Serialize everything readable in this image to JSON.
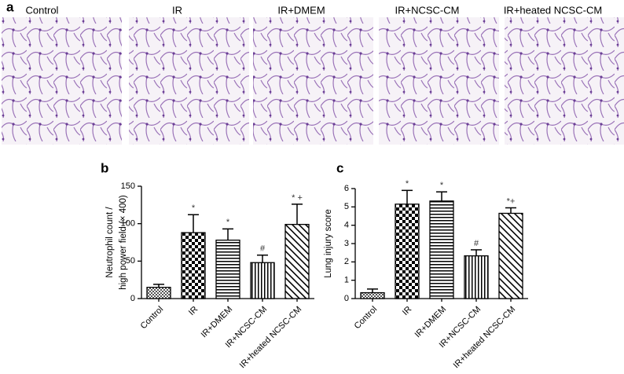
{
  "panel_a": {
    "label": "a",
    "images": [
      "Control",
      "IR",
      "IR+DMEM",
      "IR+NCSC-CM",
      "IR+heated NCSC-CM"
    ]
  },
  "chart_data": [
    {
      "type": "bar",
      "panel_label": "b",
      "ylabel": [
        "Neutrophil count /",
        "high power field (× 400)"
      ],
      "categories": [
        "Control",
        "IR",
        "IR+DMEM",
        "IR+NCSC-CM",
        "IR+heated NCSC-CM"
      ],
      "values": [
        15,
        88,
        78,
        48,
        99
      ],
      "errors": [
        4,
        24,
        15,
        10,
        27
      ],
      "annotations": [
        null,
        "*",
        "*",
        "#",
        "* +"
      ],
      "ylim": [
        0,
        150
      ],
      "yticks": [
        0,
        50,
        100,
        150
      ],
      "color": "#000000"
    },
    {
      "type": "bar",
      "panel_label": "c",
      "ylabel": [
        "Lung injury score"
      ],
      "categories": [
        "Control",
        "IR",
        "IR+DMEM",
        "IR+NCSC-CM",
        "IR+heated NCSC-CM"
      ],
      "values": [
        0.32,
        5.15,
        5.32,
        2.33,
        4.65
      ],
      "errors": [
        0.2,
        0.75,
        0.5,
        0.33,
        0.3
      ],
      "annotations": [
        null,
        "*",
        "*",
        "#",
        "*+"
      ],
      "ylim": [
        0,
        6
      ],
      "yticks": [
        0,
        1,
        2,
        3,
        4,
        5,
        6
      ],
      "color": "#000000"
    }
  ]
}
